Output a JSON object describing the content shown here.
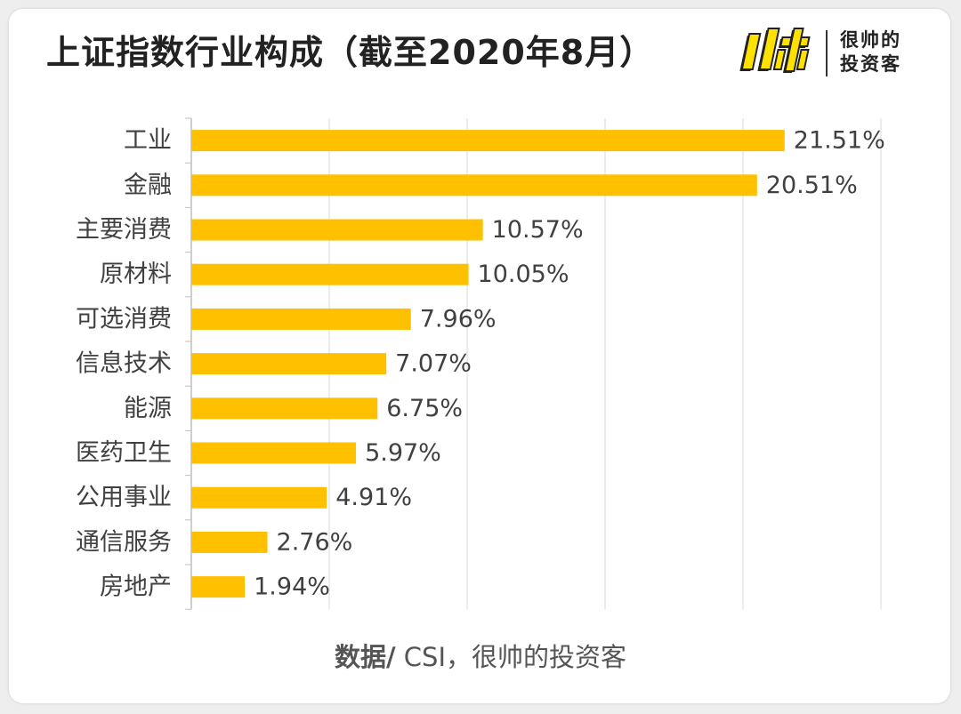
{
  "title": "上证指数行业构成（截至2020年8月）",
  "logo": {
    "mark_text": "帅",
    "line1": "很帅的",
    "line2": "投资客"
  },
  "source": {
    "label": "数据/",
    "text": " CSI，很帅的投资客"
  },
  "colors": {
    "bar": "#FFC000",
    "grid": "#d9d9d9",
    "text": "#404040",
    "axis": "#bfbfbf"
  },
  "chart_data": {
    "type": "bar",
    "orientation": "horizontal",
    "categories": [
      "工业",
      "金融",
      "主要消费",
      "原材料",
      "可选消费",
      "信息技术",
      "能源",
      "医药卫生",
      "公用事业",
      "通信服务",
      "房地产"
    ],
    "values": [
      21.51,
      20.51,
      10.57,
      10.05,
      7.96,
      7.07,
      6.75,
      5.97,
      4.91,
      2.76,
      1.94
    ],
    "data_labels": [
      "21.51%",
      "20.51%",
      "10.57%",
      "10.05%",
      "7.96%",
      "7.07%",
      "6.75%",
      "5.97%",
      "4.91%",
      "2.76%",
      "1.94%"
    ],
    "xlim": [
      0,
      25
    ],
    "grid": true,
    "tick_labels_shown": false
  }
}
